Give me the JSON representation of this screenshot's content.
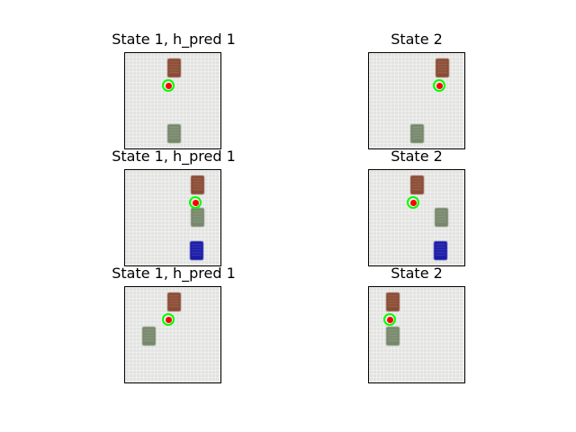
{
  "figure": {
    "panels": [
      {
        "title": "State 1, h_pred 1",
        "blocks": [
          "red",
          "green"
        ],
        "marker": "target-marker"
      },
      {
        "title": "State 2",
        "blocks": [
          "red",
          "green"
        ],
        "marker": "target-marker"
      },
      {
        "title": "State 1, h_pred 1",
        "blocks": [
          "red",
          "green",
          "blue"
        ],
        "marker": "target-marker"
      },
      {
        "title": "State 2",
        "blocks": [
          "red",
          "green",
          "blue"
        ],
        "marker": "target-marker"
      },
      {
        "title": "State 1, h_pred 1",
        "blocks": [
          "red",
          "green"
        ],
        "marker": "target-marker"
      },
      {
        "title": "State 2",
        "blocks": [
          "red",
          "green"
        ],
        "marker": "target-marker"
      }
    ],
    "colors": {
      "background": "#e3e3e1",
      "red_block": "#8a4a33",
      "green_block": "#76876a",
      "blue_block": "#1a1aa8",
      "marker_ring": "#00ff00",
      "marker_dot": "#ff0000"
    }
  }
}
